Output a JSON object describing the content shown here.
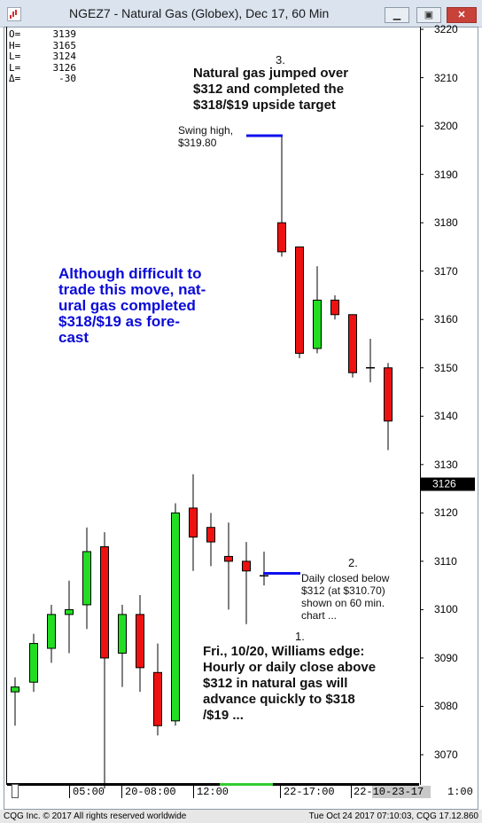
{
  "window": {
    "title": "NGEZ7 - Natural Gas (Globex), Dec 17, 60 Min",
    "buttons": [
      "minimize-button",
      "restore-button",
      "close-button"
    ]
  },
  "readout": [
    {
      "label": "O=",
      "value": "3139"
    },
    {
      "label": "H=",
      "value": "3165"
    },
    {
      "label": "L=",
      "value": "3124"
    },
    {
      "label": "L=",
      "value": "3126"
    },
    {
      "label": "Δ=",
      "value": "-30"
    }
  ],
  "annotations": {
    "a3_number": "3.",
    "a3_text": [
      "Natural gas jumped over",
      "$312 and completed the",
      "$318/$19 upside target"
    ],
    "swing_high": [
      "Swing high,",
      "$319.80"
    ],
    "blue_text": [
      "Although difficult to",
      "trade this move, nat-",
      "ural gas completed",
      "$318/$19 as fore-",
      "cast"
    ],
    "a2_number": "2.",
    "a2_text": [
      "Daily closed below",
      "$312 (at $310.70)",
      "shown on 60 min.",
      "chart ..."
    ],
    "a1_number": "1.",
    "a1_text": [
      "Fri., 10/20, Williams edge:",
      "Hourly or daily close above",
      "$312 in natural gas will",
      "advance quickly to $318",
      "/$19 ..."
    ]
  },
  "footer": {
    "left": "CQG Inc. © 2017 All rights reserved worldwide",
    "right": "Tue Oct 24 2017 07:10:03, CQG 17.12.860"
  },
  "colors": {
    "up": "#22dd22",
    "down": "#ee1111",
    "level_line": "#1010ee",
    "last_box": "#000000"
  },
  "chart_data": {
    "type": "candlestick",
    "last_price_label": "3126",
    "ylim": [
      3063,
      3222
    ],
    "y_ticks": [
      3070,
      3080,
      3090,
      3100,
      3110,
      3120,
      3130,
      3140,
      3150,
      3160,
      3170,
      3180,
      3190,
      3200,
      3210,
      3220
    ],
    "x_tick_labels": [
      "05:00",
      "20-08:00",
      "12:00",
      "22-17:00",
      "22-10-23-17",
      "1:00"
    ],
    "candles": [
      {
        "open": 3083,
        "high": 3086,
        "low": 3076,
        "close": 3084
      },
      {
        "open": 3085,
        "high": 3095,
        "low": 3083,
        "close": 3093
      },
      {
        "open": 3092,
        "high": 3101,
        "low": 3089,
        "close": 3099
      },
      {
        "open": 3099,
        "high": 3106,
        "low": 3091,
        "close": 3100
      },
      {
        "open": 3101,
        "high": 3117,
        "low": 3096,
        "close": 3112
      },
      {
        "open": 3113,
        "high": 3116,
        "low": 3063,
        "close": 3090
      },
      {
        "open": 3091,
        "high": 3101,
        "low": 3084,
        "close": 3099
      },
      {
        "open": 3099,
        "high": 3103,
        "low": 3083,
        "close": 3088
      },
      {
        "open": 3087,
        "high": 3093,
        "low": 3074,
        "close": 3076
      },
      {
        "open": 3077,
        "high": 3122,
        "low": 3076,
        "close": 3120
      },
      {
        "open": 3121,
        "high": 3128,
        "low": 3108,
        "close": 3115
      },
      {
        "open": 3117,
        "high": 3120,
        "low": 3109,
        "close": 3114
      },
      {
        "open": 3111,
        "high": 3118,
        "low": 3100,
        "close": 3110
      },
      {
        "open": 3110,
        "high": 3114,
        "low": 3097,
        "close": 3108
      },
      {
        "open": 3107,
        "high": 3112,
        "low": 3105,
        "close": 3107
      },
      {
        "open": 3180,
        "high": 3198,
        "low": 3173,
        "close": 3174
      },
      {
        "open": 3175,
        "high": 3175,
        "low": 3152,
        "close": 3153
      },
      {
        "open": 3154,
        "high": 3171,
        "low": 3153,
        "close": 3164
      },
      {
        "open": 3164,
        "high": 3165,
        "low": 3160,
        "close": 3161
      },
      {
        "open": 3161,
        "high": 3161,
        "low": 3148,
        "close": 3149
      },
      {
        "open": 3150,
        "high": 3156,
        "low": 3147,
        "close": 3150
      },
      {
        "open": 3150,
        "high": 3151,
        "low": 3133,
        "close": 3139
      }
    ],
    "levels": [
      {
        "name": "swing-high-line",
        "y": 3198
      },
      {
        "name": "daily-close-line",
        "y": 3107.5
      }
    ]
  }
}
